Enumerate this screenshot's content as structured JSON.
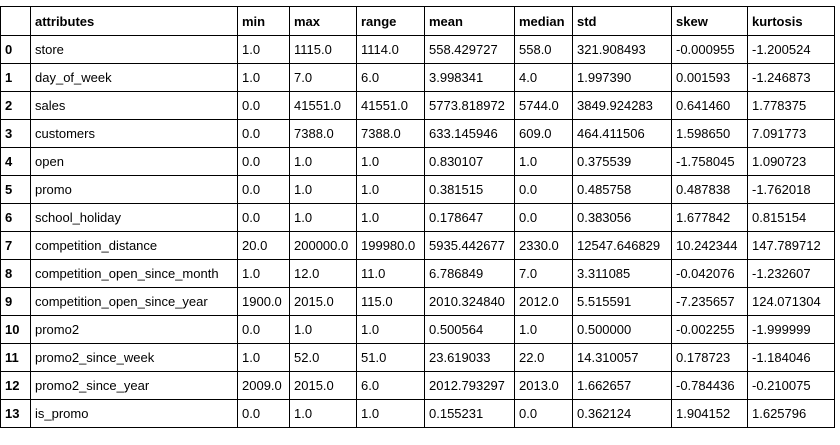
{
  "table": {
    "columns": [
      "",
      "attributes",
      "min",
      "max",
      "range",
      "mean",
      "median",
      "std",
      "skew",
      "kurtosis"
    ],
    "rows": [
      [
        "0",
        "store",
        "1.0",
        "1115.0",
        "1114.0",
        "558.429727",
        "558.0",
        "321.908493",
        "-0.000955",
        "-1.200524"
      ],
      [
        "1",
        "day_of_week",
        "1.0",
        "7.0",
        "6.0",
        "3.998341",
        "4.0",
        "1.997390",
        "0.001593",
        "-1.246873"
      ],
      [
        "2",
        "sales",
        "0.0",
        "41551.0",
        "41551.0",
        "5773.818972",
        "5744.0",
        "3849.924283",
        "0.641460",
        "1.778375"
      ],
      [
        "3",
        "customers",
        "0.0",
        "7388.0",
        "7388.0",
        "633.145946",
        "609.0",
        "464.411506",
        "1.598650",
        "7.091773"
      ],
      [
        "4",
        "open",
        "0.0",
        "1.0",
        "1.0",
        "0.830107",
        "1.0",
        "0.375539",
        "-1.758045",
        "1.090723"
      ],
      [
        "5",
        "promo",
        "0.0",
        "1.0",
        "1.0",
        "0.381515",
        "0.0",
        "0.485758",
        "0.487838",
        "-1.762018"
      ],
      [
        "6",
        "school_holiday",
        "0.0",
        "1.0",
        "1.0",
        "0.178647",
        "0.0",
        "0.383056",
        "1.677842",
        "0.815154"
      ],
      [
        "7",
        "competition_distance",
        "20.0",
        "200000.0",
        "199980.0",
        "5935.442677",
        "2330.0",
        "12547.646829",
        "10.242344",
        "147.789712"
      ],
      [
        "8",
        "competition_open_since_month",
        "1.0",
        "12.0",
        "11.0",
        "6.786849",
        "7.0",
        "3.311085",
        "-0.042076",
        "-1.232607"
      ],
      [
        "9",
        "competition_open_since_year",
        "1900.0",
        "2015.0",
        "115.0",
        "2010.324840",
        "2012.0",
        "5.515591",
        "-7.235657",
        "124.071304"
      ],
      [
        "10",
        "promo2",
        "0.0",
        "1.0",
        "1.0",
        "0.500564",
        "1.0",
        "0.500000",
        "-0.002255",
        "-1.999999"
      ],
      [
        "11",
        "promo2_since_week",
        "1.0",
        "52.0",
        "51.0",
        "23.619033",
        "22.0",
        "14.310057",
        "0.178723",
        "-1.184046"
      ],
      [
        "12",
        "promo2_since_year",
        "2009.0",
        "2015.0",
        "6.0",
        "2012.793297",
        "2013.0",
        "1.662657",
        "-0.784436",
        "-0.210075"
      ],
      [
        "13",
        "is_promo",
        "0.0",
        "1.0",
        "1.0",
        "0.155231",
        "0.0",
        "0.362124",
        "1.904152",
        "1.625796"
      ]
    ]
  }
}
